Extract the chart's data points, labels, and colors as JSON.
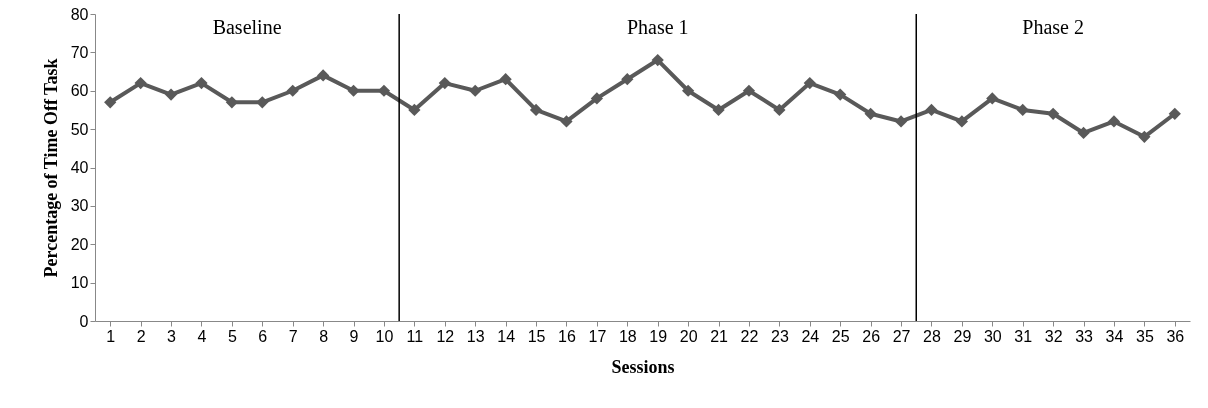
{
  "chart_data": {
    "type": "line",
    "xlabel": "Sessions",
    "ylabel": "Percentage of Time Off Task",
    "x": [
      1,
      2,
      3,
      4,
      5,
      6,
      7,
      8,
      9,
      10,
      11,
      12,
      13,
      14,
      15,
      16,
      17,
      18,
      19,
      20,
      21,
      22,
      23,
      24,
      25,
      26,
      27,
      28,
      29,
      30,
      31,
      32,
      33,
      34,
      35,
      36
    ],
    "xlim": [
      0.5,
      36.5
    ],
    "xticks": [
      1,
      2,
      3,
      4,
      5,
      6,
      7,
      8,
      9,
      10,
      11,
      12,
      13,
      14,
      15,
      16,
      17,
      18,
      19,
      20,
      21,
      22,
      23,
      24,
      25,
      26,
      27,
      28,
      29,
      30,
      31,
      32,
      33,
      34,
      35,
      36
    ],
    "ylim": [
      0,
      80
    ],
    "yticks": [
      0,
      10,
      20,
      30,
      40,
      50,
      60,
      70,
      80
    ],
    "series": [
      {
        "color": "#595959",
        "values": [
          57,
          62,
          59,
          62,
          57,
          57,
          60,
          64,
          60,
          60,
          55,
          62,
          60,
          63,
          55,
          52,
          58,
          63,
          68,
          60,
          55,
          60,
          55,
          62,
          59,
          54,
          52,
          55,
          52,
          58,
          55,
          54,
          49,
          52,
          48,
          54
        ]
      }
    ],
    "marker": "diamond",
    "ref_lines": [
      {
        "axis": "x",
        "value": 10.5,
        "color": "#000000"
      },
      {
        "axis": "x",
        "value": 27.5,
        "color": "#000000"
      }
    ],
    "annotations": [
      "Baseline",
      "Phase 1",
      "Phase 2"
    ]
  }
}
